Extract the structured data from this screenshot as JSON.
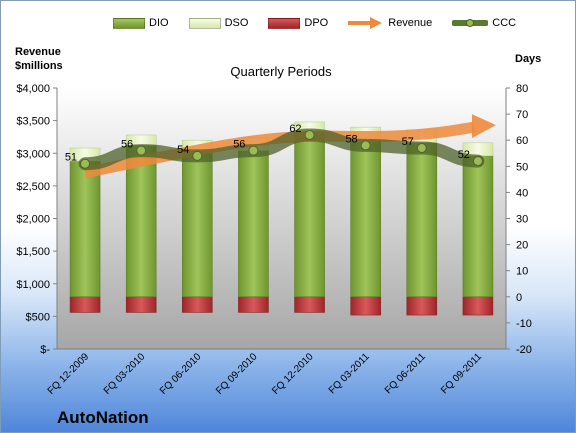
{
  "legend": {
    "dio": "DIO",
    "dso": "DSO",
    "dpo": "DPO",
    "revenue": "Revenue",
    "ccc": "CCC"
  },
  "axis_titles": {
    "left": "Revenue\n$millions",
    "right": "Days"
  },
  "plot_title": "Quarterly Periods",
  "brand": "AutoNation",
  "colors": {
    "dio": "#7fa33b",
    "dso": "#e4f0c0",
    "dpo": "#b83335",
    "revenue": "#ee8a3c",
    "ccc_line": "#5a7a2e",
    "ccc_marker": "#9bbb59",
    "plot_bg_top": "#ffffff",
    "plot_bg_bottom": "#a6a6a6"
  },
  "chart_data": {
    "type": "bar",
    "title": "Quarterly Periods",
    "categories": [
      "FQ 12-2009",
      "FQ 03-2010",
      "FQ 06-2010",
      "FQ 09-2010",
      "FQ 12-2010",
      "FQ 03-2011",
      "FQ 06-2011",
      "FQ 09-2011"
    ],
    "left_axis": {
      "label": "Revenue $millions",
      "ylim": [
        0,
        4000
      ],
      "ticks": [
        0,
        500,
        1000,
        1500,
        2000,
        2500,
        3000,
        3500,
        4000
      ],
      "tick_labels": [
        "$-",
        "$500",
        "$1,000",
        "$1,500",
        "$2,000",
        "$2,500",
        "$3,000",
        "$3,500",
        "$4,000"
      ]
    },
    "right_axis": {
      "label": "Days",
      "ylim": [
        -20,
        80
      ],
      "ticks": [
        -20,
        -10,
        0,
        10,
        20,
        30,
        40,
        50,
        60,
        70,
        80
      ],
      "tick_labels": [
        "-20",
        "-10",
        "0",
        "10",
        "20",
        "30",
        "40",
        "50",
        "60",
        "70",
        "80"
      ]
    },
    "series": [
      {
        "name": "DIO",
        "axis": "right",
        "kind": "stacked-bar",
        "values": [
          52,
          58,
          55,
          56,
          63,
          60,
          59,
          54
        ]
      },
      {
        "name": "DSO",
        "axis": "right",
        "kind": "stacked-bar",
        "values": [
          5,
          4,
          5,
          5,
          4,
          5,
          5,
          5
        ]
      },
      {
        "name": "DPO",
        "axis": "right",
        "kind": "bar-negative",
        "values": [
          -6,
          -6,
          -6,
          -6,
          -6,
          -7,
          -7,
          -7
        ]
      },
      {
        "name": "Revenue",
        "axis": "left",
        "kind": "arrow-line",
        "values": [
          2700,
          2880,
          3050,
          3200,
          3270,
          3250,
          3280,
          3400
        ]
      },
      {
        "name": "CCC",
        "axis": "right",
        "kind": "line",
        "values": [
          51,
          56,
          54,
          56,
          62,
          58,
          57,
          52
        ]
      }
    ],
    "data_labels": [
      "51",
      "56",
      "54",
      "56",
      "62",
      "58",
      "57",
      "52"
    ],
    "grid": false,
    "legend_position": "top"
  }
}
